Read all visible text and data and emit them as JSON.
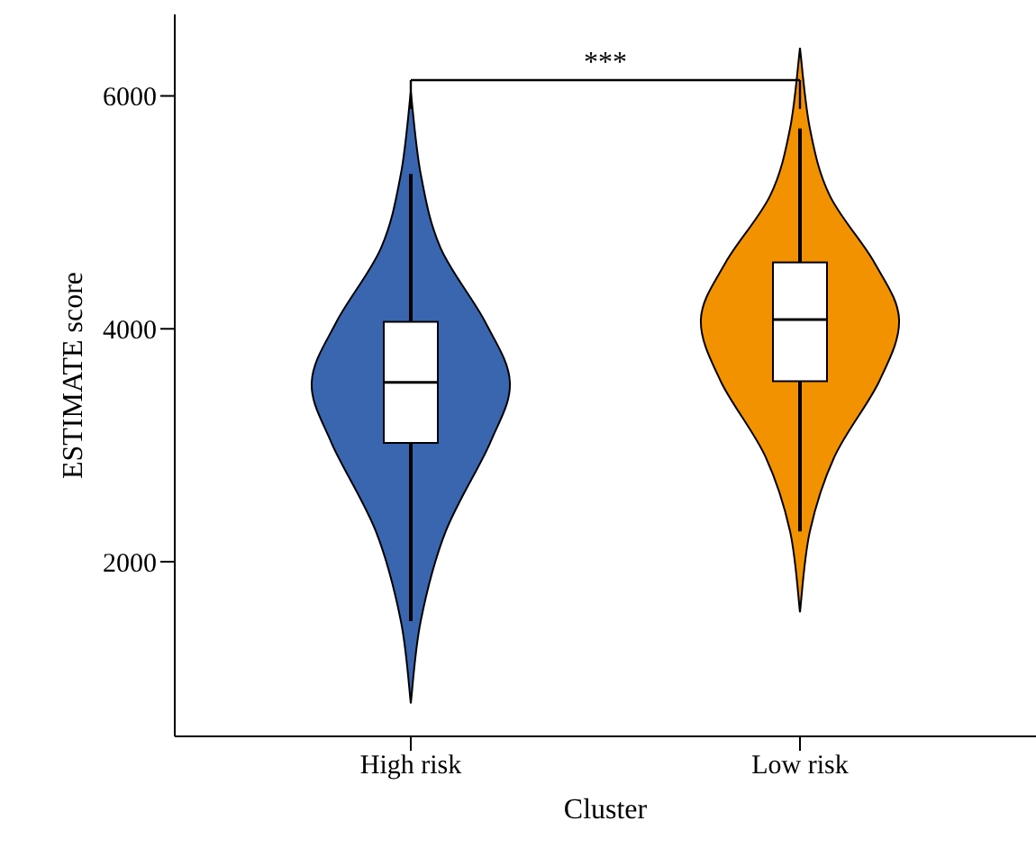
{
  "chart_data": {
    "type": "box",
    "categories": [
      "High risk",
      "Low risk"
    ],
    "boxes": [
      {
        "low": 1490,
        "q1": 3020,
        "median": 3540,
        "q3": 4060,
        "high": 5330
      },
      {
        "low": 2260,
        "q1": 3550,
        "median": 4080,
        "q3": 4570,
        "high": 5720
      }
    ],
    "colors": [
      "#ffffff",
      "#ffffff"
    ],
    "xlabel": "Cluster",
    "ylabel": "ESTIMATE score",
    "ylim": [
      500,
      6700
    ],
    "yticks": [
      2000,
      4000,
      6000
    ],
    "annotations": [
      "***"
    ],
    "grid": false,
    "legend": false
  }
}
